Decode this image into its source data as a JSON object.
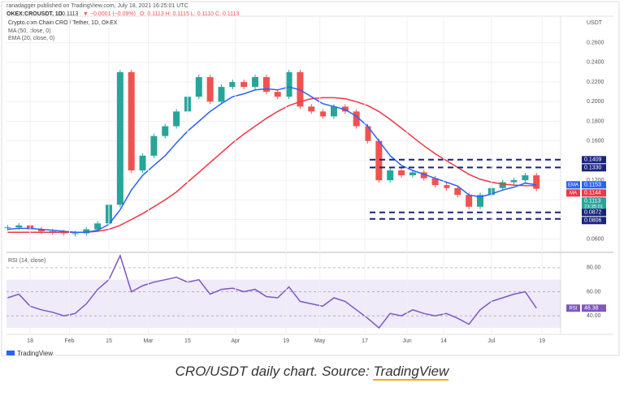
{
  "header": {
    "published": "ranadagger published on TradingView.com, July 18, 2021 16:25:01 UTC",
    "symbol": "OKEX:CROUSDT, 1D",
    "last": "0.1113",
    "change": "▼ −0.0001 (−0.09%)",
    "ohlc": "O: 0.1113 H: 0.1115 L: 0.1110 C: 0.1113"
  },
  "chart_data": [
    {
      "type": "candlestick",
      "title": "Crypto.com Chain CRO / Tether, 1D, OKEX",
      "unit": "USDT",
      "series": [
        {
          "up_color": "#26a69a",
          "down_color": "#ef5350",
          "values": [
            0.072,
            0.074,
            0.07,
            0.068,
            0.067,
            0.066,
            0.066,
            0.07,
            0.076,
            0.095,
            0.23,
            0.13,
            0.145,
            0.165,
            0.175,
            0.19,
            0.205,
            0.225,
            0.2,
            0.215,
            0.22,
            0.215,
            0.225,
            0.21,
            0.205,
            0.23,
            0.195,
            0.19,
            0.185,
            0.195,
            0.19,
            0.175,
            0.16,
            0.12,
            0.13,
            0.125,
            0.128,
            0.122,
            0.115,
            0.112,
            0.105,
            0.093,
            0.105,
            0.112,
            0.118,
            0.12,
            0.125,
            0.1113
          ],
          "tag_color": "#26a69a",
          "countdown": "23:35:01"
        },
        {
          "name": "MA (50, close, 0)",
          "tag": "MA",
          "color": "#f23645",
          "values": [
            0.067,
            0.067,
            0.067,
            0.067,
            0.067,
            0.067,
            0.067,
            0.067,
            0.068,
            0.07,
            0.074,
            0.08,
            0.086,
            0.093,
            0.1,
            0.108,
            0.118,
            0.128,
            0.138,
            0.148,
            0.158,
            0.167,
            0.175,
            0.183,
            0.19,
            0.196,
            0.2,
            0.203,
            0.204,
            0.204,
            0.203,
            0.2,
            0.196,
            0.19,
            0.182,
            0.173,
            0.164,
            0.155,
            0.147,
            0.14,
            0.133,
            0.126,
            0.121,
            0.118,
            0.116,
            0.115,
            0.1145,
            0.1144
          ]
        },
        {
          "name": "EMA (20, close, 0)",
          "tag": "EMA",
          "color": "#2962ff",
          "values": [
            0.07,
            0.071,
            0.071,
            0.07,
            0.069,
            0.068,
            0.067,
            0.067,
            0.069,
            0.075,
            0.09,
            0.11,
            0.125,
            0.135,
            0.145,
            0.158,
            0.17,
            0.18,
            0.19,
            0.198,
            0.205,
            0.208,
            0.212,
            0.213,
            0.212,
            0.215,
            0.212,
            0.205,
            0.198,
            0.195,
            0.192,
            0.185,
            0.175,
            0.16,
            0.145,
            0.135,
            0.13,
            0.126,
            0.122,
            0.118,
            0.114,
            0.105,
            0.103,
            0.106,
            0.11,
            0.113,
            0.117,
            0.1153
          ]
        }
      ],
      "ylim": [
        0.049,
        0.287
      ],
      "yticks": [
        {
          "value": 0.06,
          "label": "0.0600"
        },
        {
          "value": 0.08,
          "label": "0.0800"
        },
        {
          "value": 0.1,
          "label": "0.1000"
        },
        {
          "value": 0.12,
          "label": "0.1200"
        },
        {
          "value": 0.14,
          "label": "0.1400"
        },
        {
          "value": 0.16,
          "label": "0.1600"
        },
        {
          "value": 0.18,
          "label": "0.1800"
        },
        {
          "value": 0.2,
          "label": "0.2000"
        },
        {
          "value": 0.22,
          "label": "0.2200"
        },
        {
          "value": 0.24,
          "label": "0.2400"
        },
        {
          "value": 0.26,
          "label": "0.2600"
        }
      ],
      "xlim": [
        -0.1,
        49.15
      ],
      "xticks": [
        {
          "value": 2,
          "label": "18"
        },
        {
          "value": 5.5,
          "label": "Feb"
        },
        {
          "value": 9,
          "label": "15"
        },
        {
          "value": 12.5,
          "label": "Mar"
        },
        {
          "value": 16,
          "label": "15"
        },
        {
          "value": 20.25,
          "label": "Apr"
        },
        {
          "value": 24.75,
          "label": "19"
        },
        {
          "value": 27.75,
          "label": "May"
        },
        {
          "value": 31.75,
          "label": "17"
        },
        {
          "value": 35.5,
          "label": "Jun"
        },
        {
          "value": 38.75,
          "label": "14"
        },
        {
          "value": 43,
          "label": "Jul"
        },
        {
          "value": 47.5,
          "label": "19"
        }
      ],
      "levels": [
        {
          "value": 0.1409,
          "label": "0.1409"
        },
        {
          "value": 0.133,
          "label": "0.1330"
        },
        {
          "value": 0.0872,
          "label": "0.0872"
        },
        {
          "value": 0.0806,
          "label": "0.0806"
        }
      ],
      "level_color": "#1a237e",
      "grid": true
    },
    {
      "type": "line",
      "title": "RSI (14, close)",
      "series": [
        {
          "name": "RSI",
          "tag": "RSI",
          "color": "#7e57c2",
          "values": [
            55,
            58,
            48,
            45,
            43,
            40,
            42,
            50,
            62,
            70,
            90,
            60,
            65,
            68,
            70,
            72,
            68,
            70,
            58,
            62,
            63,
            60,
            62,
            56,
            55,
            64,
            52,
            50,
            48,
            55,
            52,
            45,
            38,
            30,
            42,
            40,
            45,
            42,
            40,
            42,
            38,
            33,
            45,
            52,
            55,
            58,
            60,
            46.38
          ]
        }
      ],
      "band": [
        30,
        70
      ],
      "ylim": [
        26,
        90
      ],
      "yticks": [
        {
          "value": 40,
          "label": "40.00"
        },
        {
          "value": 60,
          "label": "60.00"
        },
        {
          "value": 80,
          "label": "80.00"
        }
      ],
      "grid": true
    }
  ],
  "footer": {
    "logo": "TradingView",
    "caption": "CRO/USDT daily chart. Source: ",
    "caption_link": "TradingView"
  }
}
